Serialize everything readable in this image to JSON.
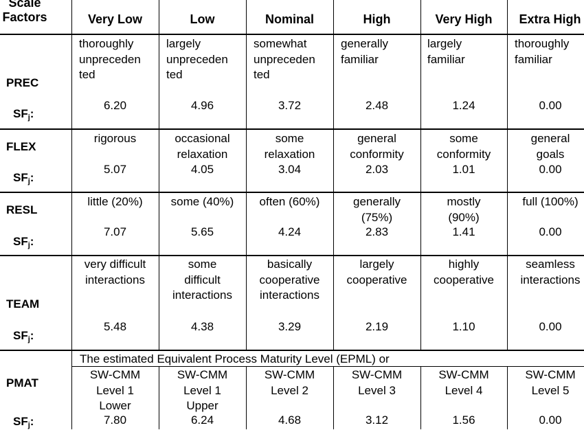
{
  "header": {
    "scale_factors": "Scale\nFactors",
    "levels": [
      "Very Low",
      "Low",
      "Nominal",
      "High",
      "Very High",
      "Extra High"
    ]
  },
  "sf_label": "SF",
  "sf_sub": "j",
  "sf_colon": ":",
  "rows": [
    {
      "name": "PREC",
      "descriptions": [
        "thoroughly\nunpreceden\nted",
        "largely\nunpreceden\nted",
        "somewhat\nunpreceden\nted",
        "generally\nfamiliar",
        "largely\nfamiliar",
        "thoroughly\nfamiliar"
      ],
      "values": [
        "6.20",
        "4.96",
        "3.72",
        "2.48",
        "1.24",
        "0.00"
      ]
    },
    {
      "name": "FLEX",
      "descriptions": [
        "rigorous",
        "occasional\nrelaxation",
        "some\nrelaxation",
        "general\nconformity",
        "some\nconformity",
        "general\ngoals"
      ],
      "values": [
        "5.07",
        "4.05",
        "3.04",
        "2.03",
        "1.01",
        "0.00"
      ]
    },
    {
      "name": "RESL",
      "descriptions": [
        "little (20%)",
        "some (40%)",
        "often (60%)",
        "generally\n(75%)",
        "mostly\n(90%)",
        "full (100%)"
      ],
      "values": [
        "7.07",
        "5.65",
        "4.24",
        "2.83",
        "1.41",
        "0.00"
      ]
    },
    {
      "name": "TEAM",
      "descriptions": [
        "very difficult\ninteractions",
        "some\ndifficult\ninteractions",
        "basically\ncooperative\ninteractions",
        "largely\ncooperative",
        "highly\ncooperative",
        "seamless\ninteractions"
      ],
      "values": [
        "5.48",
        "4.38",
        "3.29",
        "2.19",
        "1.10",
        "0.00"
      ]
    },
    {
      "name": "PMAT",
      "note": "The estimated Equivalent Process Maturity Level (EPML) or",
      "descriptions": [
        "SW-CMM\nLevel 1\nLower",
        "SW-CMM\nLevel 1\nUpper",
        "SW-CMM\nLevel 2",
        "SW-CMM\nLevel 3",
        "SW-CMM\nLevel 4",
        "SW-CMM\nLevel 5"
      ],
      "values": [
        "7.80",
        "6.24",
        "4.68",
        "3.12",
        "1.56",
        "0.00"
      ]
    }
  ]
}
